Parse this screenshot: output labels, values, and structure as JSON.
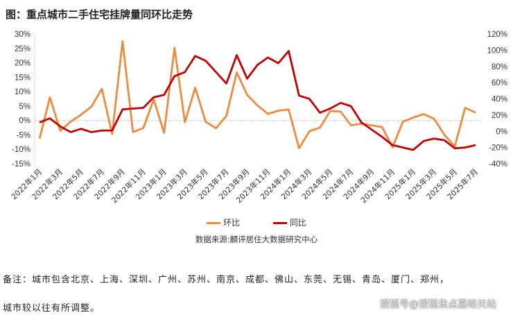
{
  "title": "图：重点城市二手住宅挂牌量同环比走势",
  "chart_data": {
    "type": "line",
    "title": "图：重点城市二手住宅挂牌量同环比走势",
    "x": [
      "2022年1月",
      "2022年2月",
      "2022年3月",
      "2022年4月",
      "2022年5月",
      "2022年6月",
      "2022年7月",
      "2022年8月",
      "2022年9月",
      "2022年10月",
      "2022年11月",
      "2022年12月",
      "2023年1月",
      "2023年2月",
      "2023年3月",
      "2023年4月",
      "2023年5月",
      "2023年6月",
      "2023年7月",
      "2023年8月",
      "2023年9月",
      "2023年10月",
      "2023年11月",
      "2023年12月",
      "2024年1月",
      "2024年2月",
      "2024年3月",
      "2024年4月",
      "2024年5月",
      "2024年6月",
      "2024年7月",
      "2024年8月",
      "2024年9月",
      "2024年10月",
      "2024年11月",
      "2024年12月",
      "2025年1月",
      "2025年2月",
      "2025年3月",
      "2025年4月",
      "2025年5月",
      "2025年6月",
      "2025年7月"
    ],
    "x_tick_labels": [
      "2022年1月",
      "2022年3月",
      "2022年5月",
      "2022年7月",
      "2022年9月",
      "2022年11月",
      "2023年1月",
      "2023年3月",
      "2023年5月",
      "2023年7月",
      "2023年9月",
      "2023年11月",
      "2024年1月",
      "2024年3月",
      "2024年5月",
      "2024年7月",
      "2024年9月",
      "2024年11月",
      "2025年1月",
      "2025年3月",
      "2025年5月",
      "2025年7月"
    ],
    "y_left": {
      "range": [
        -15,
        30
      ],
      "ticks": [
        "30%",
        "25%",
        "20%",
        "15%",
        "10%",
        "5%",
        "0%",
        "-5%",
        "-10%",
        "-15%"
      ],
      "unit": "%"
    },
    "y_right": {
      "range": [
        -40,
        120
      ],
      "ticks": [
        "120%",
        "100%",
        "80%",
        "60%",
        "40%",
        "20%",
        "0%",
        "-20%",
        "-40%"
      ],
      "unit": "%"
    },
    "grid": false,
    "legend_placement": "bottom",
    "series": [
      {
        "name": "环比",
        "axis": "left",
        "color": "#ED8A3F",
        "values": [
          -6.3,
          8,
          -3.6,
          -0.4,
          2,
          4.8,
          11,
          -4.7,
          27.5,
          -4,
          -2.6,
          7.3,
          -4.3,
          25.2,
          -0.6,
          11.4,
          -0.4,
          -2.7,
          1.6,
          16.7,
          8.9,
          5.2,
          2.3,
          3.4,
          3.8,
          -9.6,
          -3.7,
          -2.5,
          3.3,
          3.1,
          -1.7,
          -1.1,
          -1.7,
          -2.3,
          -9.3,
          -0.4,
          1,
          2.2,
          0.6,
          -5,
          -9,
          4.4,
          2.7
        ]
      },
      {
        "name": "同比",
        "axis": "right",
        "color": "#C00000",
        "values": [
          11,
          16,
          6,
          -1,
          3,
          -1,
          1,
          1,
          27,
          28,
          29,
          42,
          45,
          68,
          73,
          93,
          87,
          73,
          59,
          94,
          65,
          82,
          91,
          84,
          99,
          44,
          40,
          23,
          28,
          35,
          31,
          11,
          2,
          -7,
          -17,
          -20,
          -23,
          -12,
          -9,
          -11,
          -21,
          -20,
          -17
        ]
      }
    ]
  },
  "legend": {
    "items": [
      "环比",
      "同比"
    ]
  },
  "source": "数据来源:麟评居住大数据研究中心",
  "note": {
    "line1": "备注：城市包含北京、上海、深圳、广州、苏州、南京、成都、佛山、东莞、无锡、青岛、厦门、郑州，",
    "line2": "城市较以往有所调整。"
  },
  "watermark": "搜狐号@搜狐焦点嘉峪关站"
}
